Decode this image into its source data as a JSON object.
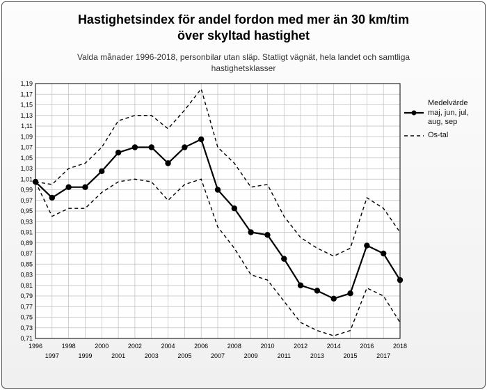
{
  "title_line1": "Hastighetsindex för andel fordon med mer än 30 km/tim",
  "title_line2": "över skyltad hastighet",
  "subtitle_line1": "Valda månader 1996-2018, personbilar utan släp. Statligt vägnät, hela landet och samtliga",
  "subtitle_line2": "hastighetsklasser",
  "legend": {
    "mean_label": "Medelvärde maj, jun, jul, aug, sep",
    "os_label": "Os-tal"
  },
  "chart": {
    "type": "line",
    "background_color": "#ffffff",
    "grid_color": "#bfbfbf",
    "axis_color": "#000000",
    "text_color": "#000000",
    "label_fontsize": 10,
    "tick_fontsize": 9,
    "ylim": [
      0.71,
      1.19
    ],
    "ytick_step": 0.02,
    "years": [
      1996,
      1997,
      1998,
      1999,
      2000,
      2001,
      2002,
      2003,
      2004,
      2005,
      2006,
      2007,
      2008,
      2009,
      2010,
      2011,
      2012,
      2013,
      2014,
      2015,
      2016,
      2017,
      2018
    ],
    "series": {
      "mean": {
        "color": "#000000",
        "line_width": 2.2,
        "marker": "circle",
        "marker_size": 4.2,
        "values": [
          1.005,
          0.975,
          0.995,
          0.995,
          1.025,
          1.06,
          1.07,
          1.07,
          1.04,
          1.07,
          1.085,
          0.99,
          0.955,
          0.91,
          0.905,
          0.86,
          0.81,
          0.8,
          0.785,
          0.795,
          0.885,
          0.87,
          0.82
        ]
      },
      "upper": {
        "color": "#000000",
        "line_width": 1.4,
        "dash": "5,4",
        "values": [
          1.005,
          1.0,
          1.03,
          1.04,
          1.07,
          1.12,
          1.13,
          1.13,
          1.105,
          1.14,
          1.18,
          1.07,
          1.04,
          0.995,
          1.0,
          0.94,
          0.9,
          0.88,
          0.865,
          0.88,
          0.975,
          0.955,
          0.91
        ]
      },
      "lower": {
        "color": "#000000",
        "line_width": 1.4,
        "dash": "5,4",
        "values": [
          1.005,
          0.94,
          0.955,
          0.955,
          0.985,
          1.005,
          1.01,
          1.005,
          0.97,
          1.0,
          1.01,
          0.92,
          0.88,
          0.83,
          0.82,
          0.78,
          0.74,
          0.725,
          0.715,
          0.725,
          0.805,
          0.79,
          0.74
        ]
      }
    }
  }
}
